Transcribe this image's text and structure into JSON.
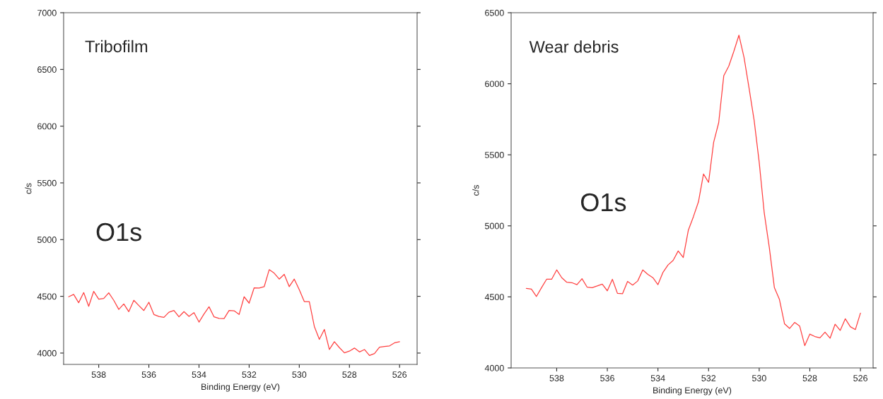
{
  "chart_data": [
    {
      "type": "line",
      "xlabel": "Binding Energy (eV)",
      "ylabel": "c/s",
      "annotations": [
        "Tribofilm",
        "O1s"
      ],
      "x": [
        539.2,
        539.0,
        538.8,
        538.6,
        538.4,
        538.2,
        538.0,
        537.8,
        537.6,
        537.4,
        537.2,
        537.0,
        536.8,
        536.6,
        536.4,
        536.2,
        536.0,
        535.8,
        535.6,
        535.4,
        535.2,
        535.0,
        534.8,
        534.6,
        534.4,
        534.2,
        534.0,
        533.8,
        533.6,
        533.4,
        533.2,
        533.0,
        532.8,
        532.6,
        532.4,
        532.2,
        532.0,
        531.8,
        531.6,
        531.4,
        531.2,
        531.0,
        530.8,
        530.6,
        530.4,
        530.2,
        530.0,
        529.8,
        529.6,
        529.4,
        529.2,
        529.0,
        528.8,
        528.6,
        528.4,
        528.2,
        528.0,
        527.8,
        527.6,
        527.4,
        527.2,
        527.0,
        526.8,
        526.6,
        526.4,
        526.2,
        526.0
      ],
      "series": [
        {
          "color": "#ff4040",
          "values": [
            4496,
            4517,
            4444,
            4533,
            4412,
            4544,
            4475,
            4481,
            4531,
            4465,
            4385,
            4433,
            4365,
            4465,
            4419,
            4375,
            4448,
            4340,
            4323,
            4315,
            4360,
            4375,
            4319,
            4365,
            4323,
            4356,
            4273,
            4344,
            4408,
            4319,
            4306,
            4304,
            4375,
            4373,
            4340,
            4496,
            4440,
            4575,
            4573,
            4585,
            4735,
            4704,
            4652,
            4694,
            4585,
            4652,
            4558,
            4454,
            4454,
            4235,
            4121,
            4208,
            4031,
            4100,
            4048,
            4002,
            4017,
            4044,
            4010,
            4031,
            3979,
            3996,
            4052,
            4058,
            4063,
            4090,
            4100
          ]
        }
      ],
      "xlim": [
        539.4,
        525.3
      ],
      "ylim": [
        3900,
        7000
      ],
      "xticks": [
        538,
        536,
        534,
        532,
        530,
        528,
        526
      ],
      "yticks": [
        4000,
        4500,
        5000,
        5500,
        6000,
        6500,
        7000
      ],
      "grid": false,
      "marker": "none",
      "line_style": "solid"
    },
    {
      "type": "line",
      "xlabel": "Binding Energy (eV)",
      "ylabel": "c/s",
      "annotations": [
        "Wear debris",
        "O1s"
      ],
      "x": [
        539.2,
        539.0,
        538.8,
        538.6,
        538.4,
        538.2,
        538.0,
        537.8,
        537.6,
        537.4,
        537.2,
        537.0,
        536.8,
        536.6,
        536.4,
        536.2,
        536.0,
        535.8,
        535.6,
        535.4,
        535.2,
        535.0,
        534.8,
        534.6,
        534.4,
        534.2,
        534.0,
        533.8,
        533.6,
        533.4,
        533.2,
        533.0,
        532.8,
        532.6,
        532.4,
        532.2,
        532.0,
        531.8,
        531.6,
        531.4,
        531.2,
        531.0,
        530.8,
        530.6,
        530.4,
        530.2,
        530.0,
        529.8,
        529.6,
        529.4,
        529.2,
        529.0,
        528.8,
        528.6,
        528.4,
        528.2,
        528.0,
        527.8,
        527.6,
        527.4,
        527.2,
        527.0,
        526.8,
        526.6,
        526.4,
        526.2,
        526.0
      ],
      "series": [
        {
          "color": "#ff4040",
          "values": [
            4560,
            4555,
            4503,
            4565,
            4624,
            4624,
            4690,
            4635,
            4603,
            4600,
            4586,
            4628,
            4569,
            4565,
            4577,
            4590,
            4543,
            4624,
            4525,
            4522,
            4609,
            4583,
            4612,
            4690,
            4659,
            4635,
            4586,
            4673,
            4725,
            4757,
            4823,
            4777,
            4969,
            5064,
            5169,
            5365,
            5306,
            5587,
            5726,
            6056,
            6125,
            6229,
            6342,
            6186,
            5969,
            5743,
            5448,
            5090,
            4847,
            4565,
            4482,
            4311,
            4278,
            4320,
            4294,
            4157,
            4238,
            4221,
            4212,
            4252,
            4209,
            4308,
            4264,
            4346,
            4290,
            4270,
            4386
          ]
        }
      ],
      "xlim": [
        539.8,
        525.5
      ],
      "ylim": [
        4000,
        6500
      ],
      "xticks": [
        538,
        536,
        534,
        532,
        530,
        528,
        526
      ],
      "yticks": [
        4000,
        4500,
        5000,
        5500,
        6000,
        6500
      ],
      "grid": false,
      "marker": "none",
      "line_style": "solid"
    }
  ]
}
